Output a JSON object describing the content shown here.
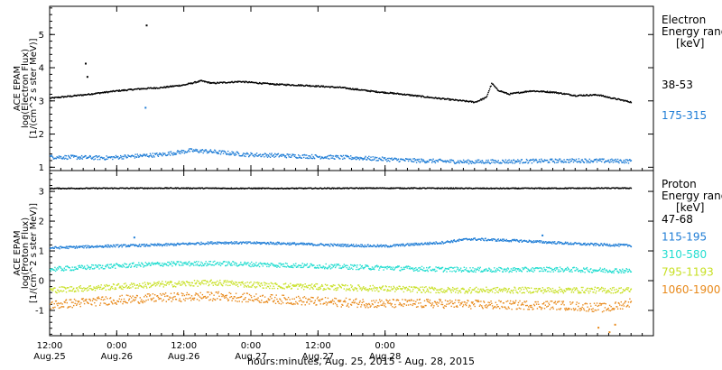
{
  "chart_data": [
    {
      "type": "scatter",
      "instrument": "ACE EPAM",
      "ylabel": [
        "ACE EPAM",
        "log(Electron Flux)",
        "[1/(cm^2 s ster MeV)]"
      ],
      "legend_title": [
        "Electron",
        "Energy range",
        "[keV]"
      ],
      "ylim": [
        0.9,
        5.85
      ],
      "yticks": [
        1,
        2,
        3,
        4,
        5
      ],
      "grid": false,
      "legend_position": "right",
      "series": [
        {
          "name": "38-53",
          "color": "#000000",
          "values": [
            [
              0,
              3.1
            ],
            [
              6,
              3.2
            ],
            [
              12,
              3.32
            ],
            [
              16,
              3.38
            ],
            [
              20,
              3.42
            ],
            [
              24,
              3.5
            ],
            [
              27,
              3.62
            ],
            [
              29,
              3.55
            ],
            [
              34,
              3.6
            ],
            [
              40,
              3.52
            ],
            [
              46,
              3.48
            ],
            [
              52,
              3.42
            ],
            [
              58,
              3.3
            ],
            [
              63,
              3.22
            ],
            [
              68,
              3.12
            ],
            [
              72,
              3.05
            ],
            [
              76,
              2.98
            ],
            [
              78,
              3.12
            ],
            [
              79,
              3.55
            ],
            [
              80,
              3.35
            ],
            [
              82,
              3.22
            ],
            [
              86,
              3.32
            ],
            [
              90,
              3.28
            ],
            [
              94,
              3.18
            ],
            [
              98,
              3.2
            ],
            [
              100,
              3.12
            ],
            [
              104,
              2.98
            ]
          ],
          "outliers": [
            [
              6.3,
              4.15
            ],
            [
              6.6,
              3.75
            ],
            [
              17.2,
              5.3
            ]
          ]
        },
        {
          "name": "175-315",
          "color": "#1f7dd6",
          "values": [
            [
              0,
              1.33
            ],
            [
              10,
              1.3
            ],
            [
              20,
              1.4
            ],
            [
              25,
              1.52
            ],
            [
              28,
              1.5
            ],
            [
              35,
              1.4
            ],
            [
              45,
              1.35
            ],
            [
              55,
              1.3
            ],
            [
              65,
              1.22
            ],
            [
              75,
              1.18
            ],
            [
              85,
              1.2
            ],
            [
              95,
              1.22
            ],
            [
              104,
              1.2
            ]
          ],
          "outliers": [
            [
              17.0,
              2.82
            ]
          ]
        }
      ]
    },
    {
      "type": "scatter",
      "instrument": "ACE EPAM",
      "ylabel": [
        "ACE EPAM",
        "log(Proton Flux)",
        "[1/(cm^2 s ster MeV)]"
      ],
      "legend_title": [
        "Proton",
        "Energy range",
        "[keV]"
      ],
      "ylim": [
        -1.85,
        3.7
      ],
      "yticks": [
        -1,
        0,
        1,
        2,
        3
      ],
      "grid": false,
      "legend_position": "right",
      "series": [
        {
          "name": "47-68",
          "color": "#000000",
          "values": [
            [
              0,
              3.12
            ],
            [
              20,
              3.13
            ],
            [
              40,
              3.12
            ],
            [
              60,
              3.13
            ],
            [
              80,
              3.12
            ],
            [
              104,
              3.13
            ]
          ]
        },
        {
          "name": "115-195",
          "color": "#1f7dd6",
          "values": [
            [
              0,
              1.12
            ],
            [
              10,
              1.18
            ],
            [
              20,
              1.22
            ],
            [
              30,
              1.3
            ],
            [
              40,
              1.28
            ],
            [
              50,
              1.22
            ],
            [
              60,
              1.18
            ],
            [
              70,
              1.3
            ],
            [
              75,
              1.42
            ],
            [
              85,
              1.35
            ],
            [
              95,
              1.25
            ],
            [
              104,
              1.2
            ]
          ],
          "outliers": [
            [
              15.0,
              1.48
            ],
            [
              88.0,
              1.55
            ]
          ]
        },
        {
          "name": "310-580",
          "color": "#22ddd0",
          "values": [
            [
              0,
              0.4
            ],
            [
              10,
              0.5
            ],
            [
              20,
              0.58
            ],
            [
              30,
              0.6
            ],
            [
              40,
              0.55
            ],
            [
              50,
              0.5
            ],
            [
              60,
              0.45
            ],
            [
              70,
              0.4
            ],
            [
              80,
              0.38
            ],
            [
              90,
              0.4
            ],
            [
              104,
              0.35
            ]
          ]
        },
        {
          "name": "795-1193",
          "color": "#c8e025",
          "values": [
            [
              0,
              -0.3
            ],
            [
              10,
              -0.2
            ],
            [
              20,
              -0.1
            ],
            [
              30,
              -0.05
            ],
            [
              40,
              -0.15
            ],
            [
              50,
              -0.2
            ],
            [
              60,
              -0.25
            ],
            [
              70,
              -0.3
            ],
            [
              80,
              -0.3
            ],
            [
              90,
              -0.3
            ],
            [
              104,
              -0.3
            ]
          ]
        },
        {
          "name": "1060-1900",
          "color": "#e8891a",
          "values": [
            [
              0,
              -0.8
            ],
            [
              10,
              -0.65
            ],
            [
              20,
              -0.55
            ],
            [
              30,
              -0.5
            ],
            [
              40,
              -0.6
            ],
            [
              50,
              -0.7
            ],
            [
              60,
              -0.75
            ],
            [
              70,
              -0.75
            ],
            [
              80,
              -0.8
            ],
            [
              90,
              -0.8
            ],
            [
              100,
              -0.9
            ],
            [
              104,
              -0.7
            ]
          ],
          "outliers": [
            [
              98.0,
              -1.55
            ],
            [
              101.0,
              -1.45
            ],
            [
              100.0,
              -1.7
            ]
          ]
        }
      ]
    }
  ],
  "xaxis": {
    "range_hours": [
      0,
      108
    ],
    "ticks": [
      {
        "h": 0,
        "time": "12:00",
        "date": "Aug.25"
      },
      {
        "h": 12,
        "time": "0:00",
        "date": "Aug.26"
      },
      {
        "h": 24,
        "time": "12:00",
        "date": "Aug.26"
      },
      {
        "h": 36,
        "time": "0:00",
        "date": "Aug.27"
      },
      {
        "h": 48,
        "time": "12:00",
        "date": "Aug.27"
      },
      {
        "h": 60,
        "time": "0:00",
        "date": "Aug.28"
      }
    ],
    "label": "hours:minutes, Aug. 25, 2015 - Aug. 28, 2015"
  }
}
